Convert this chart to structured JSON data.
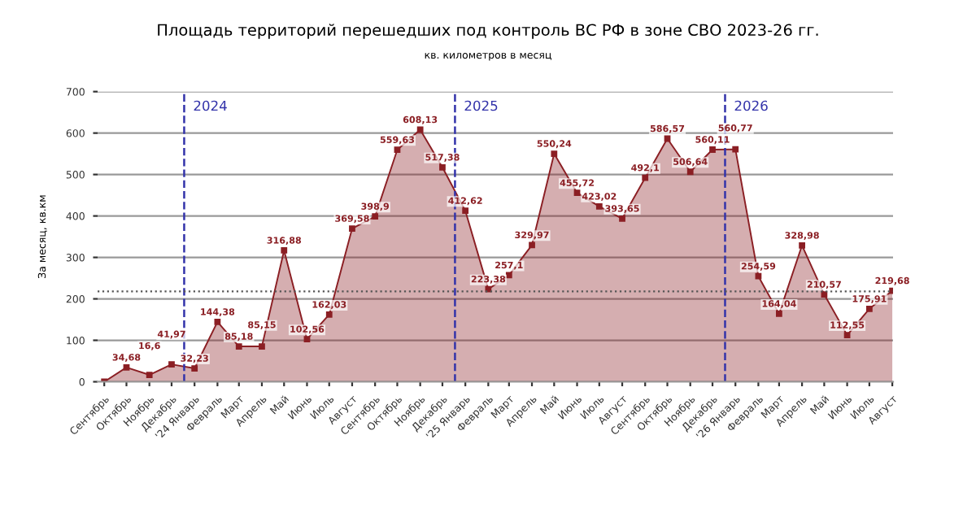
{
  "chart_data": {
    "type": "area",
    "title": "Площадь территорий перешедших под контроль ВС РФ в зоне СВО 2023-26 гг.",
    "subtitle": "кв. километров в месяц",
    "ylabel": "За месяц, кв.км",
    "x": [
      "2023-09-15",
      "2023-10-15",
      "2023-11-15",
      "2023-12-15",
      "2024-01-15",
      "2024-02-15",
      "2024-03-15",
      "2024-04-15",
      "2024-05-15",
      "2024-06-15",
      "2024-07-15",
      "2024-08-15",
      "2024-09-15",
      "2024-10-15",
      "2024-11-15",
      "2024-12-15",
      "2025-01-15",
      "2025-02-15",
      "2025-03-15",
      "2025-04-15",
      "2025-05-15",
      "2025-06-15",
      "2025-07-15",
      "2025-08-15",
      "2025-09-15",
      "2025-10-15",
      "2025-11-15",
      "2025-12-15",
      "2026-01-15",
      "2026-02-15",
      "2026-03-15",
      "2026-04-15",
      "2026-05-15",
      "2026-06-15",
      "2026-07-15",
      "2026-08-15"
    ],
    "xlim": [
      "2023-09-06",
      "2026-08-16"
    ],
    "xticks": [
      {
        "value": "2023-09-15",
        "label": "Сентябрь"
      },
      {
        "value": "2023-10-15",
        "label": "Октябрь"
      },
      {
        "value": "2023-11-15",
        "label": "Ноябрь"
      },
      {
        "value": "2023-12-15",
        "label": "Декабрь"
      },
      {
        "value": "2024-01-15",
        "label": "'24 Январь"
      },
      {
        "value": "2024-02-15",
        "label": "Февраль"
      },
      {
        "value": "2024-03-15",
        "label": "Март"
      },
      {
        "value": "2024-04-15",
        "label": "Апрель"
      },
      {
        "value": "2024-05-15",
        "label": "Май"
      },
      {
        "value": "2024-06-15",
        "label": "Июнь"
      },
      {
        "value": "2024-07-15",
        "label": "Июль"
      },
      {
        "value": "2024-08-15",
        "label": "Август"
      },
      {
        "value": "2024-09-15",
        "label": "Сентябрь"
      },
      {
        "value": "2024-10-15",
        "label": "Октябрь"
      },
      {
        "value": "2024-11-15",
        "label": "Ноябрь"
      },
      {
        "value": "2024-12-15",
        "label": "Декабрь"
      },
      {
        "value": "2025-01-15",
        "label": "'25 Январь"
      },
      {
        "value": "2025-02-15",
        "label": "Февраль"
      },
      {
        "value": "2025-03-15",
        "label": "Март"
      },
      {
        "value": "2025-04-15",
        "label": "Апрель"
      },
      {
        "value": "2025-05-15",
        "label": "Май"
      },
      {
        "value": "2025-06-15",
        "label": "Июнь"
      },
      {
        "value": "2025-07-15",
        "label": "Июль"
      },
      {
        "value": "2025-08-15",
        "label": "Август"
      },
      {
        "value": "2025-09-15",
        "label": "Сентябрь"
      },
      {
        "value": "2025-10-15",
        "label": "Октябрь"
      },
      {
        "value": "2025-11-15",
        "label": "Ноябрь"
      },
      {
        "value": "2025-12-15",
        "label": "Декабрь"
      },
      {
        "value": "2026-01-15",
        "label": "'26 Январь"
      },
      {
        "value": "2026-02-15",
        "label": "Февраль"
      },
      {
        "value": "2026-03-15",
        "label": "Март"
      },
      {
        "value": "2026-04-15",
        "label": "Апрель"
      },
      {
        "value": "2026-05-15",
        "label": "Май"
      },
      {
        "value": "2026-06-15",
        "label": "Июнь"
      },
      {
        "value": "2026-07-15",
        "label": "Июль"
      },
      {
        "value": "2026-08-15",
        "label": "Август"
      }
    ],
    "series": [
      {
        "color": "#8b1f24",
        "values": [
          0,
          34.68,
          16.6,
          41.97,
          32.23,
          144.38,
          85.18,
          85.15,
          316.88,
          102.56,
          162.03,
          369.58,
          398.9,
          559.63,
          608.13,
          517.38,
          412.62,
          223.38,
          257.1,
          329.97,
          550.24,
          455.72,
          423.02,
          393.65,
          492.1,
          586.57,
          506.64,
          560.11,
          560.77,
          254.59,
          164.04,
          328.98,
          210.57,
          112.55,
          175.91,
          219.68
        ],
        "value_labels": [
          null,
          "34,68",
          "16,6",
          "41,97",
          "32,23",
          "144,38",
          "85,18",
          "85,15",
          "316,88",
          "102,56",
          "162,03",
          "369,58",
          "398,9",
          "559,63",
          "608,13",
          "517,38",
          "412,62",
          "223,38",
          "257,1",
          "329,97",
          "550,24",
          "455,72",
          "423,02",
          "393,65",
          "492,1",
          "586,57",
          "506,64",
          "560,11",
          "560,77",
          "254,59",
          "164,04",
          "328,98",
          "210,57",
          "112,55",
          "175,91",
          "219,68"
        ]
      }
    ],
    "ylim": [
      0,
      700
    ],
    "yticks": [
      0,
      100,
      200,
      300,
      400,
      500,
      600,
      700
    ],
    "grid": "y",
    "marker": "square",
    "legend": false,
    "ref_lines": [
      {
        "axis": "x",
        "value": "2024-01-01",
        "label": "2024",
        "color": "#3333aa",
        "line_style": "dashed"
      },
      {
        "axis": "x",
        "value": "2025-01-01",
        "label": "2025",
        "color": "#3333aa",
        "line_style": "dashed"
      },
      {
        "axis": "x",
        "value": "2026-01-01",
        "label": "2026",
        "color": "#3333aa",
        "line_style": "dashed"
      },
      {
        "axis": "y",
        "value": 218,
        "color": "#555555",
        "line_style": "dotted"
      }
    ]
  }
}
